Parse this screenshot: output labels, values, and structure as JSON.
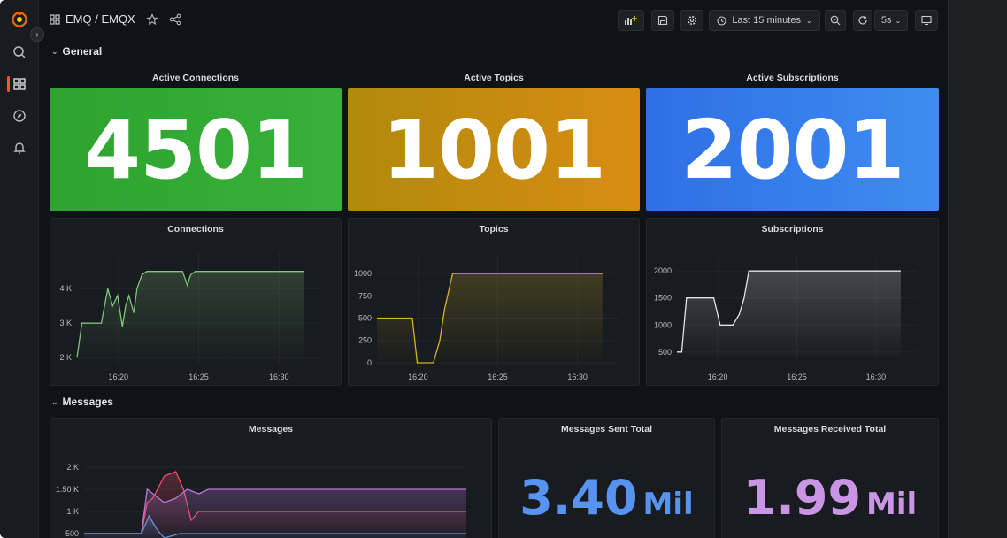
{
  "colors": {
    "green": "#37b139",
    "orange": "#d98c12",
    "blue": "#3d8cf0",
    "connections_line": "#7fc47b",
    "topics_line": "#d3b422",
    "subscriptions_line": "#dfe3ea",
    "messages_pink": "#ef4b6b",
    "messages_purple": "#b877d9",
    "messages_blue": "#6b8fd8",
    "sent_blue": "#5794f2",
    "received_purple": "#ca95e5"
  },
  "topbar": {
    "crumb": "EMQ / EMQX",
    "time_range": "Last 15 minutes",
    "refresh_interval": "5s"
  },
  "rows": {
    "general": "General",
    "messages": "Messages"
  },
  "stats": {
    "active_connections": {
      "title": "Active Connections",
      "value": "4501"
    },
    "active_topics": {
      "title": "Active Topics",
      "value": "1001"
    },
    "active_subscriptions": {
      "title": "Active Subscriptions",
      "value": "2001"
    }
  },
  "totals": {
    "sent": {
      "title": "Messages Sent Total",
      "value": "3.40",
      "unit": "Mil"
    },
    "received": {
      "title": "Messages Received Total",
      "value": "1.99",
      "unit": "Mil"
    }
  },
  "chart_data": [
    {
      "type": "line",
      "title": "Connections",
      "x_ticks": [
        "16:20",
        "16:25",
        "16:30"
      ],
      "y_ticks": [
        "2 K",
        "3 K",
        "4 K"
      ],
      "ylim": [
        1800,
        4800
      ],
      "xlim": [
        0,
        15
      ],
      "series": [
        {
          "x": [
            0,
            0.3,
            0.5,
            1.5,
            1.9,
            2.2,
            2.5,
            2.8,
            3.0,
            3.2,
            3.5,
            3.7,
            4.0,
            4.3,
            4.6,
            4.9,
            6.5,
            6.8,
            7.0,
            7.3,
            14.0
          ],
          "y": [
            2000,
            3000,
            3000,
            3000,
            4000,
            3500,
            3800,
            2900,
            3500,
            3800,
            3300,
            4000,
            4400,
            4500,
            4500,
            4500,
            4500,
            4100,
            4400,
            4500,
            4500
          ]
        }
      ]
    },
    {
      "type": "line",
      "title": "Topics",
      "x_ticks": [
        "16:20",
        "16:25",
        "16:30"
      ],
      "y_ticks": [
        "0",
        "250",
        "500",
        "750",
        "1000"
      ],
      "ylim": [
        -50,
        1100
      ],
      "xlim": [
        0,
        15
      ],
      "series": [
        {
          "x": [
            0,
            2.2,
            2.5,
            3.5,
            3.9,
            4.2,
            4.7,
            14.0
          ],
          "y": [
            500,
            500,
            0,
            0,
            250,
            600,
            1000,
            1000
          ]
        }
      ]
    },
    {
      "type": "line",
      "title": "Subscriptions",
      "x_ticks": [
        "16:20",
        "16:25",
        "16:30"
      ],
      "y_ticks": [
        "500",
        "1000",
        "1500",
        "2000"
      ],
      "ylim": [
        350,
        2150
      ],
      "xlim": [
        0,
        15
      ],
      "series": [
        {
          "x": [
            0,
            0.3,
            0.6,
            2.0,
            2.3,
            2.7,
            3.5,
            3.9,
            4.2,
            4.5,
            14.0
          ],
          "y": [
            500,
            500,
            1500,
            1500,
            1500,
            1000,
            1000,
            1200,
            1500,
            2000,
            2000
          ]
        }
      ]
    },
    {
      "type": "line",
      "title": "Messages",
      "y_ticks": [
        "500",
        "1 K",
        "1.50 K",
        "2 K"
      ],
      "ylim": [
        300,
        2300
      ],
      "xlim": [
        0,
        20
      ],
      "series": [
        {
          "x": [
            0,
            3.0,
            3.3,
            3.6,
            4.2,
            4.8,
            5.2,
            5.6,
            6.0,
            7.0,
            9.0,
            10.0,
            20.0
          ],
          "y": [
            500,
            500,
            1200,
            1300,
            1800,
            1900,
            1500,
            800,
            1000,
            1000,
            1000,
            1000,
            1000
          ]
        },
        {
          "x": [
            0,
            3.0,
            3.3,
            3.6,
            4.2,
            4.8,
            5.4,
            6.0,
            6.5,
            8.0,
            9.5,
            10.5,
            20.0
          ],
          "y": [
            500,
            500,
            1500,
            1400,
            1200,
            1300,
            1500,
            1400,
            1500,
            1500,
            1500,
            1500,
            1500
          ]
        },
        {
          "x": [
            0,
            3.0,
            3.4,
            3.8,
            4.2,
            5.0,
            6.0,
            20.0
          ],
          "y": [
            500,
            500,
            900,
            600,
            400,
            500,
            500,
            500
          ]
        }
      ]
    }
  ]
}
